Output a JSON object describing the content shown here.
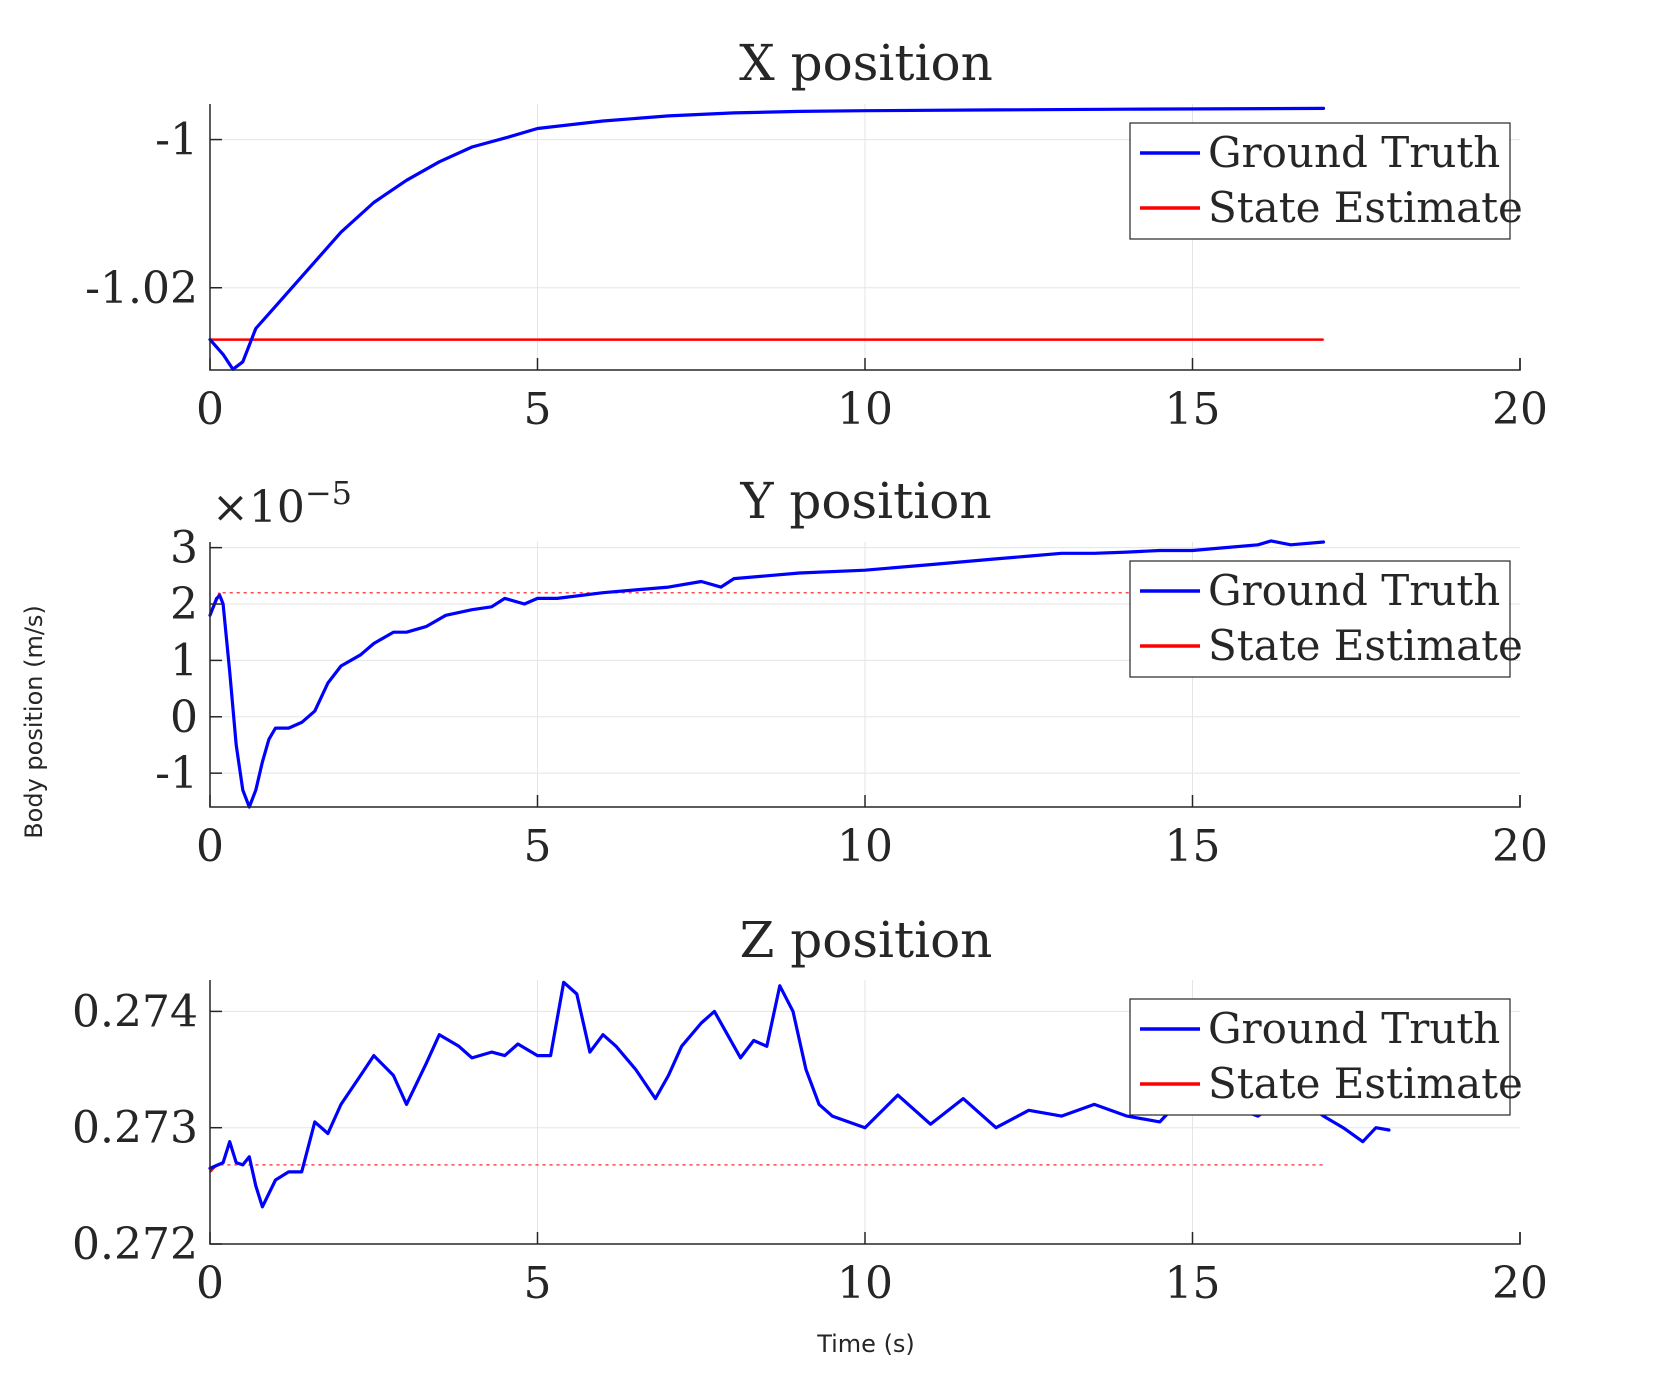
{
  "figure": {
    "ylabel": "Body position (m/s)",
    "xlabel": "Time (s)",
    "colors": {
      "ground_truth": "#0000ff",
      "state_estimate": "#ff0000",
      "grid": "#e5e5e5",
      "axis": "#262626"
    }
  },
  "chart_data": [
    {
      "type": "line",
      "title": "X position",
      "xlim": [
        0,
        20
      ],
      "ylim": [
        -1.0311,
        -0.9952
      ],
      "x_ticks": [
        "0",
        "5",
        "10",
        "15",
        "20"
      ],
      "y_ticks": [
        {
          "value": -1.0,
          "label": "-1"
        },
        {
          "value": -1.02,
          "label": "-1.02"
        }
      ],
      "exponent_label": "",
      "grid": true,
      "legend": {
        "placement": "top-right",
        "entries": [
          "Ground Truth",
          "State Estimate"
        ]
      },
      "series": [
        {
          "name": "Ground Truth",
          "color": "#0000ff",
          "points": [
            [
              0,
              -1.027
            ],
            [
              0.2,
              -1.029
            ],
            [
              0.35,
              -1.031
            ],
            [
              0.5,
              -1.03
            ],
            [
              0.7,
              -1.0255
            ],
            [
              1,
              -1.0225
            ],
            [
              1.5,
              -1.0175
            ],
            [
              2,
              -1.0125
            ],
            [
              2.5,
              -1.0085
            ],
            [
              3,
              -1.0055
            ],
            [
              3.5,
              -1.003
            ],
            [
              4,
              -1.001
            ],
            [
              4.5,
              -0.9998
            ],
            [
              5,
              -0.9985
            ],
            [
              6,
              -0.9975
            ],
            [
              7,
              -0.9968
            ],
            [
              8,
              -0.9964
            ],
            [
              9,
              -0.9962
            ],
            [
              10,
              -0.9961
            ],
            [
              12,
              -0.996
            ],
            [
              14,
              -0.9959
            ],
            [
              17,
              -0.9958
            ]
          ]
        },
        {
          "name": "State Estimate",
          "color": "#ff0000",
          "points": [
            [
              0,
              -1.027
            ],
            [
              17,
              -1.027
            ]
          ]
        }
      ]
    },
    {
      "type": "line",
      "title": "Y position",
      "xlim": [
        0,
        20
      ],
      "ylim": [
        -1.6,
        3.1
      ],
      "x_ticks": [
        "0",
        "5",
        "10",
        "15",
        "20"
      ],
      "y_ticks": [
        {
          "value": 3,
          "label": "3"
        },
        {
          "value": 2,
          "label": "2"
        },
        {
          "value": 1,
          "label": "1"
        },
        {
          "value": 0,
          "label": "0"
        },
        {
          "value": -1,
          "label": "-1"
        }
      ],
      "exponent_label": {
        "base": "×10",
        "power": "−5"
      },
      "grid": true,
      "legend": {
        "placement": "top-right",
        "entries": [
          "Ground Truth",
          "State Estimate"
        ]
      },
      "series": [
        {
          "name": "Ground Truth",
          "color": "#0000ff",
          "points": [
            [
              0,
              1.8
            ],
            [
              0.1,
              2.1
            ],
            [
              0.15,
              2.15
            ],
            [
              0.2,
              2.0
            ],
            [
              0.3,
              0.8
            ],
            [
              0.4,
              -0.5
            ],
            [
              0.5,
              -1.3
            ],
            [
              0.6,
              -1.6
            ],
            [
              0.7,
              -1.3
            ],
            [
              0.8,
              -0.8
            ],
            [
              0.9,
              -0.4
            ],
            [
              1.0,
              -0.2
            ],
            [
              1.2,
              -0.2
            ],
            [
              1.4,
              -0.1
            ],
            [
              1.6,
              0.1
            ],
            [
              1.8,
              0.6
            ],
            [
              2,
              0.9
            ],
            [
              2.3,
              1.1
            ],
            [
              2.5,
              1.3
            ],
            [
              2.8,
              1.5
            ],
            [
              3,
              1.5
            ],
            [
              3.3,
              1.6
            ],
            [
              3.6,
              1.8
            ],
            [
              4,
              1.9
            ],
            [
              4.3,
              1.95
            ],
            [
              4.5,
              2.1
            ],
            [
              4.8,
              2.0
            ],
            [
              5,
              2.1
            ],
            [
              5.3,
              2.1
            ],
            [
              6,
              2.2
            ],
            [
              6.5,
              2.25
            ],
            [
              7,
              2.3
            ],
            [
              7.5,
              2.4
            ],
            [
              7.8,
              2.3
            ],
            [
              8,
              2.45
            ],
            [
              8.5,
              2.5
            ],
            [
              9,
              2.55
            ],
            [
              10,
              2.6
            ],
            [
              11,
              2.7
            ],
            [
              12,
              2.8
            ],
            [
              12.5,
              2.85
            ],
            [
              13,
              2.9
            ],
            [
              13.5,
              2.9
            ],
            [
              14,
              2.92
            ],
            [
              14.5,
              2.95
            ],
            [
              15,
              2.95
            ],
            [
              15.5,
              3.0
            ],
            [
              16,
              3.05
            ],
            [
              16.2,
              3.12
            ],
            [
              16.5,
              3.05
            ],
            [
              17,
              3.1
            ]
          ]
        },
        {
          "name": "State Estimate",
          "color": "#ff0000",
          "points": [
            [
              0,
              1.8
            ],
            [
              0.15,
              2.2
            ],
            [
              17,
              2.2
            ]
          ]
        }
      ]
    },
    {
      "type": "line",
      "title": "Z position",
      "xlim": [
        0,
        20
      ],
      "ylim": [
        0.272,
        0.27427
      ],
      "x_ticks": [
        "0",
        "5",
        "10",
        "15",
        "20"
      ],
      "y_ticks": [
        {
          "value": 0.274,
          "label": "0.274"
        },
        {
          "value": 0.273,
          "label": "0.273"
        },
        {
          "value": 0.272,
          "label": "0.272"
        }
      ],
      "exponent_label": "",
      "grid": true,
      "legend": {
        "placement": "top-right",
        "entries": [
          "Ground Truth",
          "State Estimate"
        ]
      },
      "series": [
        {
          "name": "Ground Truth",
          "color": "#0000ff",
          "points": [
            [
              0,
              0.27265
            ],
            [
              0.2,
              0.2727
            ],
            [
              0.3,
              0.27288
            ],
            [
              0.4,
              0.2727
            ],
            [
              0.5,
              0.27268
            ],
            [
              0.6,
              0.27275
            ],
            [
              0.7,
              0.2725
            ],
            [
              0.8,
              0.27232
            ],
            [
              1,
              0.27255
            ],
            [
              1.2,
              0.27262
            ],
            [
              1.4,
              0.27262
            ],
            [
              1.6,
              0.27305
            ],
            [
              1.8,
              0.27295
            ],
            [
              2,
              0.2732
            ],
            [
              2.3,
              0.27345
            ],
            [
              2.5,
              0.27362
            ],
            [
              2.8,
              0.27345
            ],
            [
              3,
              0.2732
            ],
            [
              3.3,
              0.27355
            ],
            [
              3.5,
              0.2738
            ],
            [
              3.8,
              0.2737
            ],
            [
              4,
              0.2736
            ],
            [
              4.3,
              0.27365
            ],
            [
              4.5,
              0.27362
            ],
            [
              4.7,
              0.27372
            ],
            [
              5,
              0.27362
            ],
            [
              5.2,
              0.27362
            ],
            [
              5.4,
              0.27425
            ],
            [
              5.6,
              0.27415
            ],
            [
              5.8,
              0.27365
            ],
            [
              6,
              0.2738
            ],
            [
              6.2,
              0.2737
            ],
            [
              6.5,
              0.2735
            ],
            [
              6.8,
              0.27325
            ],
            [
              7,
              0.27345
            ],
            [
              7.2,
              0.2737
            ],
            [
              7.5,
              0.2739
            ],
            [
              7.7,
              0.274
            ],
            [
              7.9,
              0.2738
            ],
            [
              8.1,
              0.2736
            ],
            [
              8.3,
              0.27375
            ],
            [
              8.5,
              0.2737
            ],
            [
              8.7,
              0.27422
            ],
            [
              8.9,
              0.274
            ],
            [
              9.1,
              0.2735
            ],
            [
              9.3,
              0.2732
            ],
            [
              9.5,
              0.2731
            ],
            [
              10,
              0.273
            ],
            [
              10.5,
              0.27328
            ],
            [
              11,
              0.27303
            ],
            [
              11.5,
              0.27325
            ],
            [
              12,
              0.273
            ],
            [
              12.5,
              0.27315
            ],
            [
              13,
              0.2731
            ],
            [
              13.5,
              0.2732
            ],
            [
              14,
              0.2731
            ],
            [
              14.5,
              0.27305
            ],
            [
              15,
              0.27335
            ],
            [
              15.5,
              0.2732
            ],
            [
              16,
              0.2731
            ],
            [
              16.5,
              0.2733
            ],
            [
              17,
              0.2731
            ],
            [
              17.3,
              0.273
            ],
            [
              17.6,
              0.27288
            ],
            [
              17.8,
              0.273
            ],
            [
              18,
              0.27298
            ]
          ]
        },
        {
          "name": "State Estimate",
          "color": "#ff0000",
          "points": [
            [
              0,
              0.27262
            ],
            [
              0.1,
              0.27268
            ],
            [
              17,
              0.27268
            ]
          ]
        }
      ]
    }
  ]
}
